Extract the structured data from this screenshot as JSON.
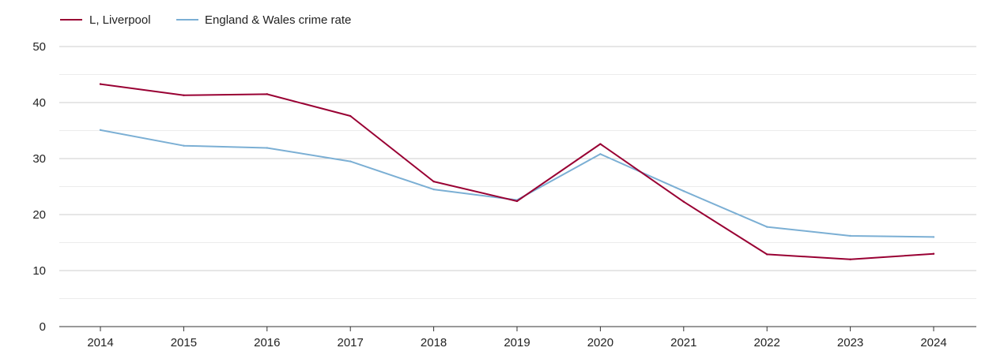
{
  "chart_data": {
    "type": "line",
    "title": "",
    "xlabel": "",
    "ylabel": "",
    "categories": [
      "2014",
      "2015",
      "2016",
      "2017",
      "2018",
      "2019",
      "2020",
      "2021",
      "2022",
      "2023",
      "2024"
    ],
    "ylim": [
      0,
      50
    ],
    "yticks": [
      0,
      10,
      20,
      30,
      40,
      50
    ],
    "grid": true,
    "legend_position": "top-left",
    "series": [
      {
        "name": "L, Liverpool",
        "color": "#990033",
        "values": [
          43.3,
          41.3,
          41.5,
          37.6,
          25.9,
          22.4,
          32.6,
          22.3,
          12.9,
          12.0,
          13.0
        ]
      },
      {
        "name": "England & Wales crime rate",
        "color": "#7bafd4",
        "values": [
          35.1,
          32.3,
          31.9,
          29.5,
          24.5,
          22.6,
          30.8,
          24.2,
          17.8,
          16.2,
          16.0
        ]
      }
    ]
  }
}
